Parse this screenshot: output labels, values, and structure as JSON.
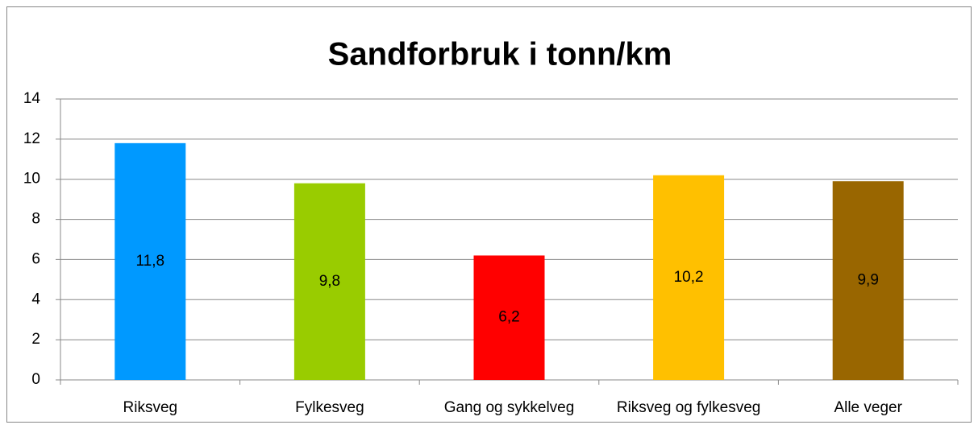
{
  "chart_data": {
    "type": "bar",
    "title": "Sandforbruk i tonn/km",
    "categories": [
      "Riksveg",
      "Fylkesveg",
      "Gang og sykkelveg",
      "Riksveg og fylkesveg",
      "Alle veger"
    ],
    "values": [
      11.8,
      9.8,
      6.2,
      10.2,
      9.9
    ],
    "value_labels": [
      "11,8",
      "9,8",
      "6,2",
      "10,2",
      "9,9"
    ],
    "colors": [
      "#0099ff",
      "#99cc00",
      "#ff0000",
      "#ffc000",
      "#996600"
    ],
    "ylim": [
      0,
      14
    ],
    "yticks": [
      0,
      2,
      4,
      6,
      8,
      10,
      12,
      14
    ],
    "grid": true
  }
}
